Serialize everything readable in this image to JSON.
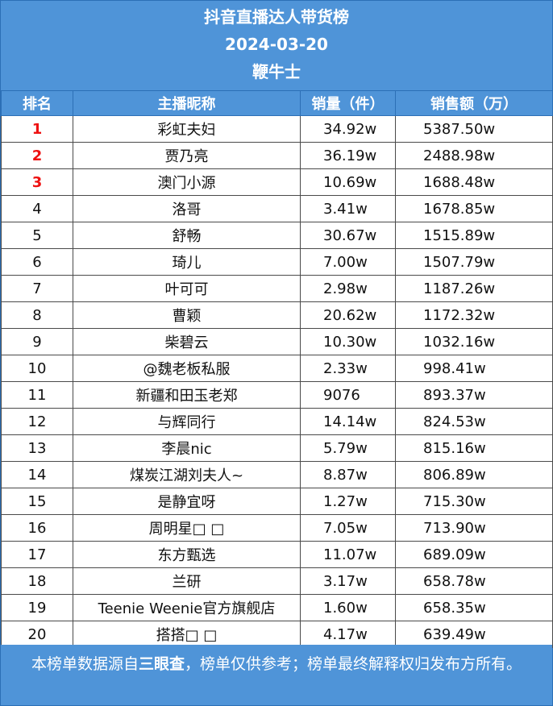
{
  "header": {
    "title": "抖音直播达人带货榜",
    "date": "2024-03-20",
    "brand": "鞭牛士"
  },
  "columns": [
    "排名",
    "主播昵称",
    "销量（件）",
    "销售额（万）"
  ],
  "rows": [
    {
      "rank": "1",
      "name": "彩虹夫妇",
      "sales": "34.92w",
      "amount": "5387.50w"
    },
    {
      "rank": "2",
      "name": "贾乃亮",
      "sales": "36.19w",
      "amount": "2488.98w"
    },
    {
      "rank": "3",
      "name": "澳门小源",
      "sales": "10.69w",
      "amount": "1688.48w"
    },
    {
      "rank": "4",
      "name": "洛哥",
      "sales": "3.41w",
      "amount": "1678.85w"
    },
    {
      "rank": "5",
      "name": "舒畅",
      "sales": "30.67w",
      "amount": "1515.89w"
    },
    {
      "rank": "6",
      "name": "琦儿",
      "sales": "7.00w",
      "amount": "1507.79w"
    },
    {
      "rank": "7",
      "name": "叶可可",
      "sales": "2.98w",
      "amount": "1187.26w"
    },
    {
      "rank": "8",
      "name": "曹颖",
      "sales": "20.62w",
      "amount": "1172.32w"
    },
    {
      "rank": "9",
      "name": "柴碧云",
      "sales": "10.30w",
      "amount": "1032.16w"
    },
    {
      "rank": "10",
      "name": "@魏老板私服",
      "sales": "2.33w",
      "amount": "998.41w"
    },
    {
      "rank": "11",
      "name": "新疆和田玉老郑",
      "sales": "9076",
      "amount": "893.37w"
    },
    {
      "rank": "12",
      "name": "与辉同行",
      "sales": "14.14w",
      "amount": "824.53w"
    },
    {
      "rank": "13",
      "name": "李晨nic",
      "sales": "5.79w",
      "amount": "815.16w"
    },
    {
      "rank": "14",
      "name": "煤炭江湖刘夫人~",
      "sales": "8.87w",
      "amount": "806.89w"
    },
    {
      "rank": "15",
      "name": "是静宜呀",
      "sales": "1.27w",
      "amount": "715.30w"
    },
    {
      "rank": "16",
      "name": "周明星□ □",
      "sales": "7.05w",
      "amount": "713.90w"
    },
    {
      "rank": "17",
      "name": "东方甄选",
      "sales": "11.07w",
      "amount": "689.09w"
    },
    {
      "rank": "18",
      "name": "兰研",
      "sales": "3.17w",
      "amount": "658.78w"
    },
    {
      "rank": "19",
      "name": "Teenie Weenie官方旗舰店",
      "sales": "1.60w",
      "amount": "658.35w"
    },
    {
      "rank": "20",
      "name": "搭搭□ □",
      "sales": "4.17w",
      "amount": "639.49w"
    }
  ],
  "footer": {
    "prefix": "本榜单数据源自",
    "source": "三眼查",
    "suffix": "，榜单仅供参考；榜单最终解释权归发布方所有。"
  },
  "colors": {
    "accent": "#4f94d8",
    "top_rank": "#ee1111"
  }
}
